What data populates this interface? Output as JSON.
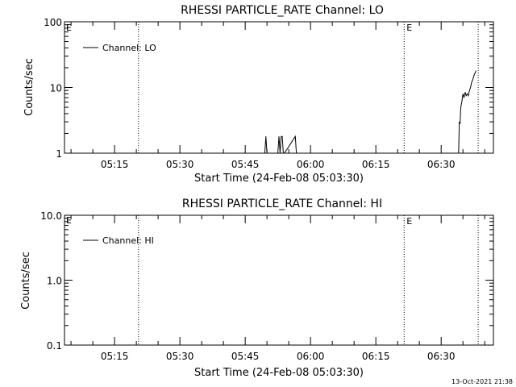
{
  "chart_data": [
    {
      "type": "line",
      "title": "RHESSI PARTICLE_RATE Channel: LO",
      "xlabel": "Start Time (24-Feb-08 05:03:30)",
      "ylabel": "Counts/sec",
      "yscale": "log",
      "xlim": [
        "05:03:30",
        "06:42:00"
      ],
      "ylim": [
        1,
        100
      ],
      "x_ticks": [
        "05:15",
        "05:30",
        "05:45",
        "06:00",
        "06:15",
        "06:30"
      ],
      "y_ticks": [
        "1",
        "10",
        "100"
      ],
      "legend": {
        "entries": [
          "Channel: LO"
        ],
        "position": "top-left"
      },
      "vlines": [
        {
          "x": "05:20:30",
          "style": "dotted"
        },
        {
          "x": "06:21:30",
          "style": "dotted",
          "label": "E"
        },
        {
          "x": "06:38:30",
          "style": "dotted"
        }
      ],
      "corner_label": "E",
      "series": [
        {
          "name": "Channel: LO",
          "x": [
            "05:49:30",
            "05:49:45",
            "05:50:00",
            "05:52:30",
            "05:52:45",
            "05:53:00",
            "05:53:15",
            "05:53:30",
            "05:53:45",
            "05:54:00",
            "05:56:30",
            "05:56:45",
            "05:57:00",
            "06:34:00",
            "06:34:10",
            "06:34:20",
            "06:34:30",
            "06:34:45",
            "06:35:00",
            "06:35:15",
            "06:35:30",
            "06:35:45",
            "06:36:00",
            "06:36:15",
            "06:36:30",
            "06:36:45",
            "06:37:00",
            "06:37:15",
            "06:37:30",
            "06:38:00"
          ],
          "values": [
            1,
            1.8,
            1,
            1,
            1.8,
            1,
            1.8,
            1.8,
            1,
            1,
            1.8,
            1,
            1,
            1,
            3,
            2.8,
            5,
            6,
            8,
            7,
            8.5,
            7.5,
            8,
            7.5,
            9,
            10,
            12,
            13,
            15,
            18
          ]
        }
      ]
    },
    {
      "type": "line",
      "title": "RHESSI PARTICLE_RATE Channel: HI",
      "xlabel": "Start Time (24-Feb-08 05:03:30)",
      "ylabel": "Counts/sec",
      "yscale": "log",
      "xlim": [
        "05:03:30",
        "06:42:00"
      ],
      "ylim": [
        0.1,
        10
      ],
      "x_ticks": [
        "05:15",
        "05:30",
        "05:45",
        "06:00",
        "06:15",
        "06:30"
      ],
      "y_ticks": [
        "0.1",
        "1.0",
        "10.0"
      ],
      "legend": {
        "entries": [
          "Channel: HI"
        ],
        "position": "top-left"
      },
      "vlines": [
        {
          "x": "05:20:30",
          "style": "dotted"
        },
        {
          "x": "06:21:30",
          "style": "dotted",
          "label": "E"
        },
        {
          "x": "06:38:30",
          "style": "dotted"
        }
      ],
      "corner_label": "E",
      "series": [
        {
          "name": "Channel: HI",
          "x": [],
          "values": []
        }
      ]
    }
  ],
  "footer": {
    "timestamp": "13-Oct-2021 21:38"
  }
}
